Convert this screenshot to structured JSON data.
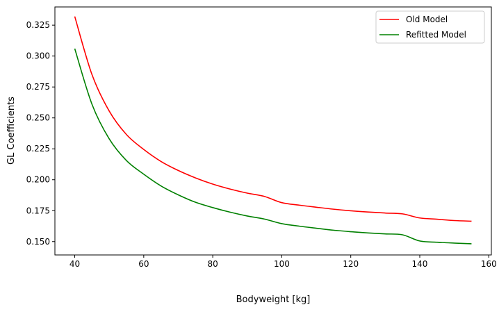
{
  "chart_data": {
    "type": "line",
    "xlabel": "Bodyweight [kg]",
    "ylabel": "GL Coefficients",
    "xlim": [
      34.25,
      160.75
    ],
    "ylim": [
      0.1392,
      0.3397
    ],
    "xticks": [
      40,
      60,
      80,
      100,
      120,
      140,
      160
    ],
    "yticks": [
      0.15,
      0.175,
      0.2,
      0.225,
      0.25,
      0.275,
      0.3,
      0.325
    ],
    "xtick_labels": [
      "40",
      "60",
      "80",
      "100",
      "120",
      "140",
      "160"
    ],
    "ytick_labels": [
      "0.150",
      "0.175",
      "0.200",
      "0.225",
      "0.250",
      "0.275",
      "0.300",
      "0.325"
    ],
    "grid": false,
    "legend": "top-right",
    "series": [
      {
        "name": "Old Model",
        "color": "#ff0000",
        "x": [
          40,
          45,
          50,
          55,
          60,
          65,
          70,
          75,
          80,
          85,
          90,
          95,
          100,
          105,
          110,
          115,
          120,
          125,
          130,
          135,
          140,
          145,
          150,
          155
        ],
        "y": [
          0.332,
          0.285,
          0.2555,
          0.2365,
          0.2245,
          0.2148,
          0.2075,
          0.2015,
          0.1965,
          0.1925,
          0.1892,
          0.1865,
          0.1815,
          0.1795,
          0.1778,
          0.1762,
          0.1749,
          0.1739,
          0.1731,
          0.1724,
          0.1691,
          0.1681,
          0.167,
          0.1665
        ]
      },
      {
        "name": "Refitted Model",
        "color": "#008000",
        "x": [
          40,
          45,
          50,
          55,
          60,
          65,
          70,
          75,
          80,
          85,
          90,
          95,
          100,
          105,
          110,
          115,
          120,
          125,
          130,
          135,
          140,
          145,
          150,
          155
        ],
        "y": [
          0.306,
          0.261,
          0.233,
          0.2155,
          0.2045,
          0.195,
          0.1878,
          0.1818,
          0.1775,
          0.1738,
          0.1707,
          0.1682,
          0.1645,
          0.1625,
          0.1608,
          0.1592,
          0.158,
          0.157,
          0.1562,
          0.1555,
          0.1505,
          0.1495,
          0.1488,
          0.1482
        ]
      }
    ]
  }
}
